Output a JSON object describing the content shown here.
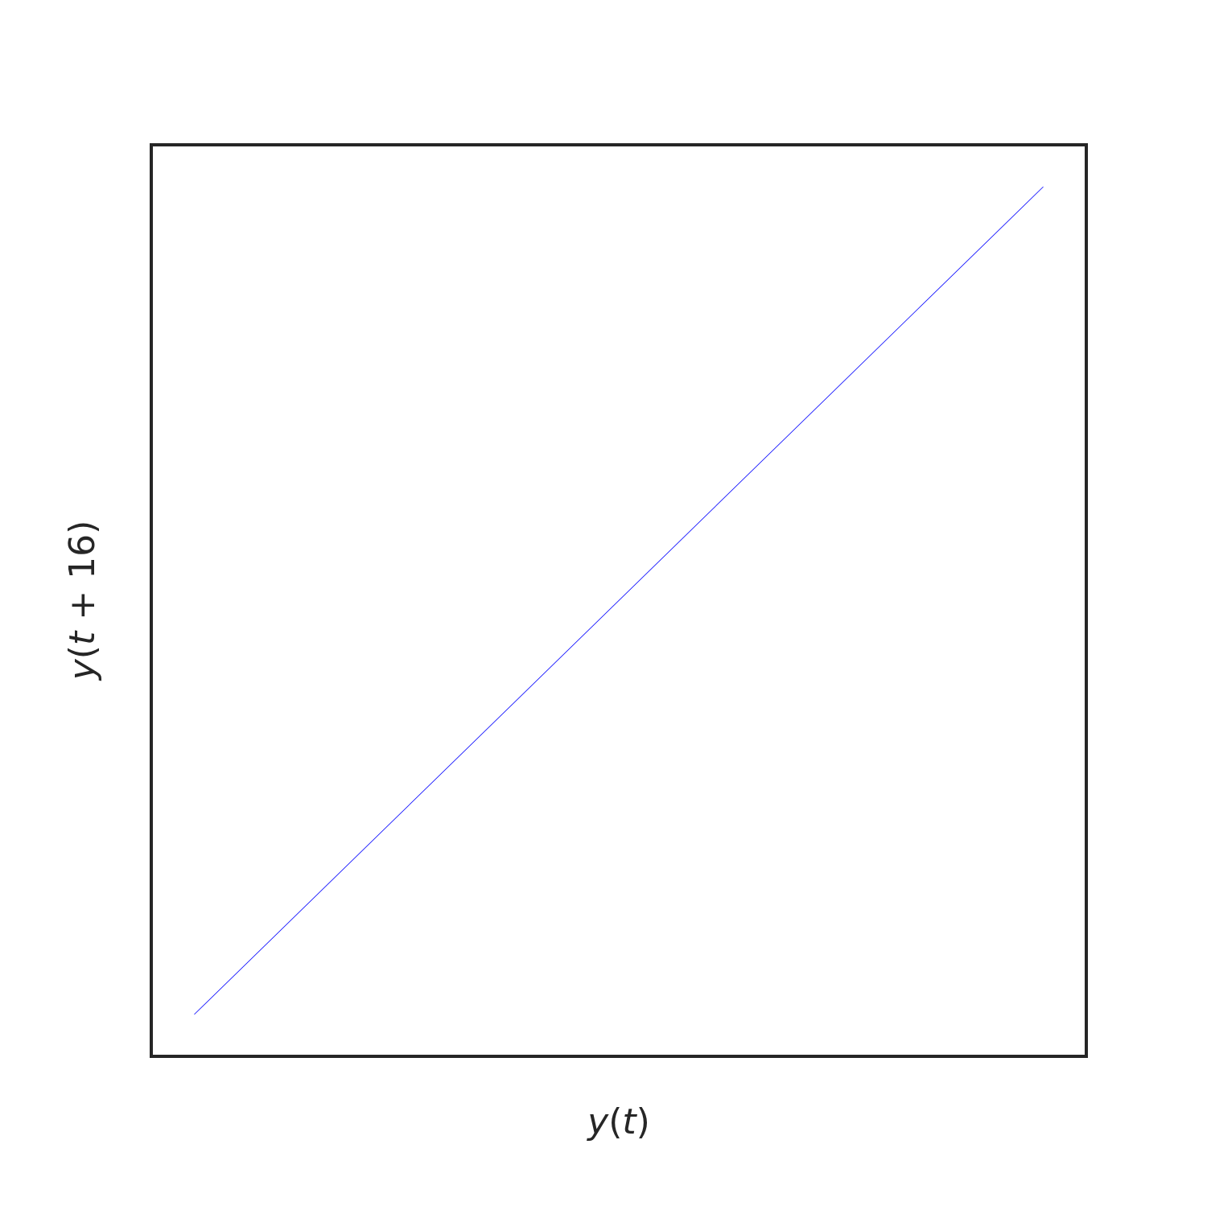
{
  "chart_data": {
    "type": "line",
    "title": "",
    "xlabel": {
      "prefix": "y",
      "open": "(",
      "var": "t",
      "close": ")"
    },
    "ylabel": {
      "prefix": "y",
      "open": "(",
      "var": "t",
      "operator": " + ",
      "lag": "16",
      "close": ")"
    },
    "xlim": [
      0,
      1
    ],
    "ylim": [
      0,
      1
    ],
    "grid": false,
    "xticks": [],
    "yticks": [],
    "line_color": "#0000ff",
    "frame_color": "#262626",
    "series": [
      {
        "x": [
          0.046,
          0.954
        ],
        "y": [
          0.046,
          0.954
        ]
      }
    ]
  }
}
